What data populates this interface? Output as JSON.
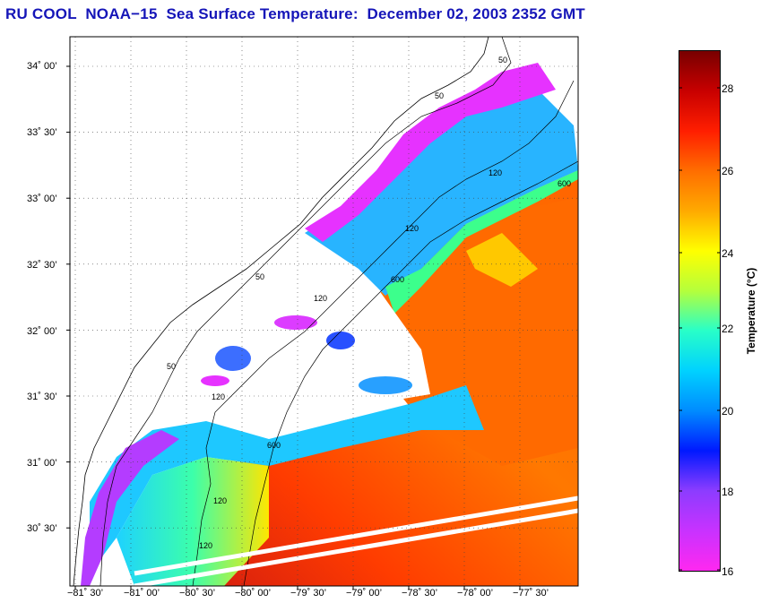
{
  "title": "RU COOL  NOAA−15  Sea Surface Temperature:  December 02, 2003 2352 GMT",
  "map": {
    "lat_labels": [
      "34˚ 00’",
      "33˚ 30’",
      "33˚ 00’",
      "32˚ 30’",
      "32˚ 00’",
      "31˚ 30’",
      "31˚ 00’",
      "30˚ 30’"
    ],
    "lon_labels": [
      "−81˚ 30’",
      "−81˚ 00’",
      "−80˚ 30’",
      "−80˚ 00’",
      "−79˚ 30’",
      "−79˚ 00’",
      "−78˚ 30’",
      "−78˚ 00’",
      "−77˚ 30’"
    ],
    "isobath_labels": [
      "50",
      "50",
      "50",
      "50",
      "120",
      "120",
      "120",
      "120",
      "120",
      "120",
      "600",
      "600",
      "600"
    ]
  },
  "colorbar": {
    "label": "Temperature (°C)",
    "ticks": [
      "28",
      "26",
      "24",
      "22",
      "20",
      "18",
      "16"
    ],
    "colors": [
      "#ff28f0",
      "#c832ff",
      "#8c3cff",
      "#0019ff",
      "#008cff",
      "#00d2ff",
      "#28ffc8",
      "#b4ff3c",
      "#ffff00",
      "#ffaa00",
      "#ff6e00",
      "#ff1e00",
      "#c80000",
      "#780000"
    ]
  }
}
